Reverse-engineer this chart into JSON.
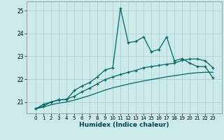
{
  "xlabel": "Humidex (Indice chaleur)",
  "background_color": "#cceaea",
  "grid_color": "#aacccc",
  "line_color": "#006666",
  "x": [
    0,
    1,
    2,
    3,
    4,
    5,
    6,
    7,
    8,
    9,
    10,
    11,
    12,
    13,
    14,
    15,
    16,
    17,
    18,
    19,
    20,
    21,
    22,
    23
  ],
  "line1": [
    20.7,
    20.9,
    21.0,
    21.1,
    21.1,
    21.5,
    21.7,
    21.85,
    22.1,
    22.4,
    22.5,
    25.1,
    23.6,
    23.65,
    23.85,
    23.2,
    23.3,
    23.85,
    22.8,
    22.9,
    22.7,
    22.55,
    22.55,
    22.05
  ],
  "line2": [
    20.7,
    20.82,
    21.0,
    21.08,
    21.12,
    21.25,
    21.45,
    21.6,
    21.8,
    21.98,
    22.1,
    22.2,
    22.3,
    22.38,
    22.5,
    22.55,
    22.6,
    22.65,
    22.7,
    22.82,
    22.88,
    22.88,
    22.8,
    22.5
  ],
  "line3": [
    20.7,
    20.78,
    20.88,
    20.95,
    21.0,
    21.08,
    21.18,
    21.28,
    21.4,
    21.52,
    21.62,
    21.7,
    21.78,
    21.85,
    21.92,
    21.98,
    22.04,
    22.1,
    22.15,
    22.2,
    22.25,
    22.28,
    22.3,
    22.3
  ],
  "ylim": [
    20.5,
    25.4
  ],
  "yticks": [
    21,
    22,
    23,
    24,
    25
  ],
  "xticks": [
    0,
    1,
    2,
    3,
    4,
    5,
    6,
    7,
    8,
    9,
    10,
    11,
    12,
    13,
    14,
    15,
    16,
    17,
    18,
    19,
    20,
    21,
    22,
    23
  ]
}
